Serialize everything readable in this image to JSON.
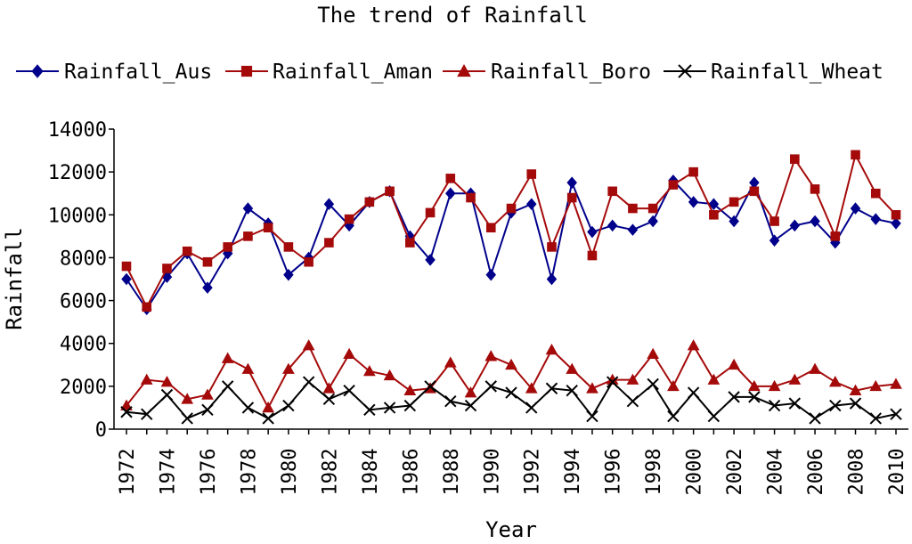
{
  "chart_data": {
    "type": "line",
    "title": "The trend of Rainfall",
    "xlabel": "Year",
    "ylabel": "Rainfall",
    "ylim": [
      0,
      14000
    ],
    "yticks": [
      "0",
      "2000",
      "4000",
      "6000",
      "8000",
      "10000",
      "12000",
      "14000"
    ],
    "xticks": [
      "1972",
      "1974",
      "1976",
      "1978",
      "1980",
      "1982",
      "1984",
      "1986",
      "1988",
      "1990",
      "1992",
      "1994",
      "1996",
      "1998",
      "2000",
      "2002",
      "2004",
      "2006",
      "2008",
      "2010"
    ],
    "grid": false,
    "legend_position": "top",
    "x": [
      1972,
      1973,
      1974,
      1975,
      1976,
      1977,
      1978,
      1979,
      1980,
      1981,
      1982,
      1983,
      1984,
      1985,
      1986,
      1987,
      1988,
      1989,
      1990,
      1991,
      1992,
      1993,
      1994,
      1995,
      1996,
      1997,
      1998,
      1999,
      2000,
      2001,
      2002,
      2003,
      2004,
      2005,
      2006,
      2007,
      2008,
      2009,
      2010
    ],
    "series": [
      {
        "name": "Rainfall_Aus",
        "color": "#00008b",
        "marker": "diamond",
        "values": [
          7000,
          5600,
          7100,
          8200,
          6600,
          8200,
          10300,
          9600,
          7200,
          8000,
          10500,
          9500,
          10600,
          11100,
          9000,
          7900,
          11000,
          11000,
          7200,
          10100,
          10500,
          7000,
          11500,
          9200,
          9500,
          9300,
          9700,
          11600,
          10600,
          10500,
          9700,
          11500,
          8800,
          9500,
          9700,
          8700,
          10300,
          9800,
          9600
        ]
      },
      {
        "name": "Rainfall_Aman",
        "color": "#a50a0a",
        "marker": "square",
        "values": [
          7600,
          5700,
          7500,
          8300,
          7800,
          8500,
          9000,
          9400,
          8500,
          7800,
          8700,
          9800,
          10600,
          11100,
          8700,
          10100,
          11700,
          10800,
          9400,
          10300,
          11900,
          8500,
          10800,
          8100,
          11100,
          10300,
          10300,
          11400,
          12000,
          10000,
          10600,
          11100,
          9700,
          12600,
          11200,
          9000,
          12800,
          11000,
          10000
        ]
      },
      {
        "name": "Rainfall_Boro",
        "color": "#a50a0a",
        "marker": "triangle",
        "values": [
          1100,
          2300,
          2200,
          1400,
          1600,
          3300,
          2800,
          1000,
          2800,
          3900,
          1900,
          3500,
          2700,
          2500,
          1800,
          1900,
          3100,
          1700,
          3400,
          3000,
          1900,
          3700,
          2800,
          1900,
          2300,
          2300,
          3500,
          2000,
          3900,
          2300,
          3000,
          2000,
          2000,
          2300,
          2800,
          2200,
          1800,
          2000,
          2100
        ]
      },
      {
        "name": "Rainfall_Wheat",
        "color": "#000000",
        "marker": "x",
        "values": [
          800,
          700,
          1600,
          500,
          900,
          2000,
          1000,
          500,
          1100,
          2200,
          1400,
          1800,
          900,
          1000,
          1100,
          2000,
          1300,
          1100,
          2000,
          1700,
          1000,
          1900,
          1800,
          600,
          2200,
          1300,
          2100,
          600,
          1700,
          600,
          1500,
          1500,
          1100,
          1200,
          500,
          1100,
          1200,
          500,
          700
        ]
      }
    ]
  }
}
